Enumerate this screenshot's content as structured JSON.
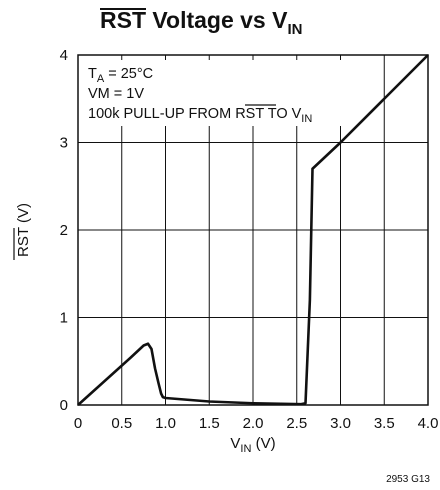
{
  "chart_data": {
    "type": "line",
    "title": {
      "rst": "RST",
      "middle": " Voltage vs V",
      "sub": "IN"
    },
    "xlabel": {
      "main": "V",
      "sub": "IN",
      "unit": " (V)"
    },
    "ylabel": {
      "rst": "RST",
      "unit": " (V)"
    },
    "xlim": [
      0,
      4.0
    ],
    "ylim": [
      0,
      4
    ],
    "x_ticks": [
      "0",
      "0.5",
      "1.0",
      "1.5",
      "2.0",
      "2.5",
      "3.0",
      "3.5",
      "4.0"
    ],
    "y_ticks": [
      "0",
      "1",
      "2",
      "3",
      "4"
    ],
    "grid": true,
    "annotations": {
      "ta": {
        "main": "T",
        "sub": "A",
        "rest": " = 25°C"
      },
      "vm": "VM = 1V",
      "pullup": {
        "pre": "100k PULL-UP FROM ",
        "rst": "RST",
        "mid": " TO V",
        "sub": "IN"
      }
    },
    "footnote": "2953 G13",
    "series": [
      {
        "x": [
          0,
          0.2,
          0.4,
          0.6,
          0.75,
          0.8,
          0.84,
          0.88,
          0.92,
          0.95,
          0.97,
          1.0,
          1.5,
          2.0,
          2.55,
          2.6,
          2.65,
          2.68,
          3.0,
          3.5,
          4.0
        ],
        "y": [
          0,
          0.18,
          0.36,
          0.54,
          0.68,
          0.7,
          0.64,
          0.42,
          0.25,
          0.13,
          0.09,
          0.08,
          0.04,
          0.02,
          0.01,
          0.02,
          1.2,
          2.7,
          3.0,
          3.5,
          4.0
        ]
      }
    ]
  }
}
